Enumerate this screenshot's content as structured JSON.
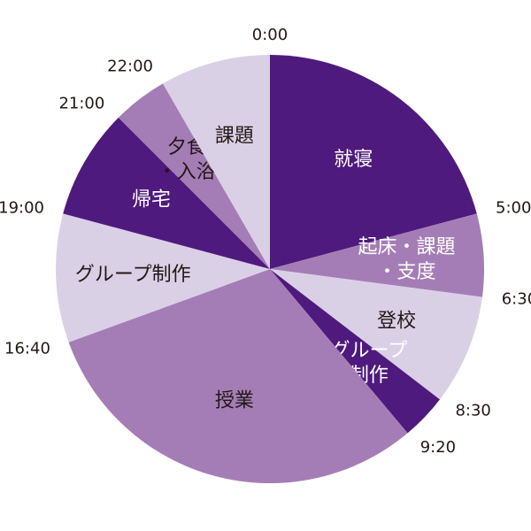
{
  "chart_data": {
    "type": "pie",
    "categories": [
      [
        "就寝"
      ],
      [
        "起床・課題",
        "・支度"
      ],
      [
        "登校"
      ],
      [
        "グループ",
        "制作"
      ],
      [
        "授業"
      ],
      [
        "グループ制作"
      ],
      [
        "帰宅"
      ],
      [
        "夕食",
        "・入浴"
      ],
      [
        "課題"
      ]
    ],
    "values": [
      300,
      90,
      120,
      50,
      440,
      140,
      120,
      60,
      120
    ],
    "colors": [
      "#4f1a7d",
      "#a57db6",
      "#dad0e6",
      "#4f1a7d",
      "#a57db6",
      "#dad0e6",
      "#4f1a7d",
      "#a57db6",
      "#dad0e6"
    ],
    "boundary_labels": [
      "0:00",
      "5:00",
      "6:30",
      "8:30",
      "9:20",
      "16:40",
      "19:00",
      "21:00",
      "22:00"
    ]
  }
}
